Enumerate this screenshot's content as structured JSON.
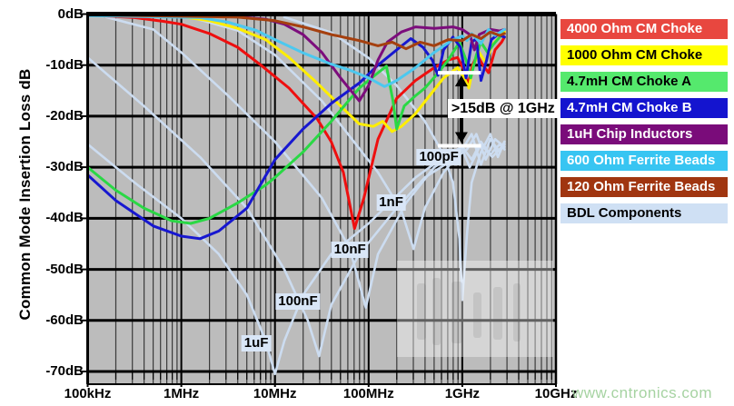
{
  "page": {
    "site_watermark": {
      "text": "www.cntronics.com",
      "color": "#a6d3a2"
    }
  },
  "chart_data": {
    "type": "line",
    "title": "",
    "ylabel": "Common Mode Insertion Loss dB",
    "xlabel": "",
    "x_axis": {
      "scale": "log",
      "min_hz": 100000,
      "max_hz": 10000000000,
      "tick_labels": [
        "100kHz",
        "1MHz",
        "10MHz",
        "100MHz",
        "1GHz",
        "10GHz"
      ]
    },
    "y_axis": {
      "min_db": -70,
      "max_db": 0,
      "step_db": 10,
      "tick_labels": [
        "0dB",
        "-10dB",
        "-20dB",
        "-30dB",
        "-40dB",
        "-50dB",
        "-60dB",
        "-70dB"
      ]
    },
    "grid": "full log grid",
    "legend_position": "right",
    "colors": {
      "plot_bg": "#bcbcbc",
      "grid_minor": "#3a3a3a",
      "grid_major": "#000000",
      "frame": "#000000"
    },
    "series": [
      {
        "name": "4000 Ohm CM Choke",
        "legend_color": "#e8473f",
        "legend_text_color": "#ffffff",
        "line_color": "#ee0f0f",
        "points": [
          [
            5,
            -0.2
          ],
          [
            5.5,
            -0.7
          ],
          [
            5.8,
            -1.4
          ],
          [
            6,
            -2
          ],
          [
            6.3,
            -3.8
          ],
          [
            6.6,
            -6.5
          ],
          [
            6.85,
            -10
          ],
          [
            7.15,
            -14.5
          ],
          [
            7.45,
            -20.5
          ],
          [
            7.6,
            -25
          ],
          [
            7.73,
            -31
          ],
          [
            7.85,
            -42
          ],
          [
            7.95,
            -36
          ],
          [
            8.1,
            -24.5
          ],
          [
            8.3,
            -16.5
          ],
          [
            8.5,
            -13
          ],
          [
            8.7,
            -10.5
          ],
          [
            8.85,
            -9
          ],
          [
            8.95,
            -8.5
          ],
          [
            9.02,
            -11
          ],
          [
            9.06,
            -14
          ],
          [
            9.11,
            -10
          ],
          [
            9.16,
            -8
          ],
          [
            9.22,
            -10
          ],
          [
            9.28,
            -11.5
          ],
          [
            9.35,
            -7
          ],
          [
            9.42,
            -5.5
          ],
          [
            9.45,
            -4.5
          ]
        ]
      },
      {
        "name": "1000 Ohm CM Choke",
        "legend_color": "#ffff00",
        "legend_text_color": "#000000",
        "line_color": "#ffee00",
        "points": [
          [
            5,
            -0.15
          ],
          [
            6,
            -0.5
          ],
          [
            6.3,
            -1.3
          ],
          [
            6.6,
            -2.8
          ],
          [
            6.9,
            -5
          ],
          [
            7.15,
            -8.5
          ],
          [
            7.45,
            -13.5
          ],
          [
            7.7,
            -18
          ],
          [
            7.9,
            -21.5
          ],
          [
            8.05,
            -22
          ],
          [
            8.15,
            -21
          ],
          [
            8.25,
            -23
          ],
          [
            8.35,
            -22
          ],
          [
            8.5,
            -19.5
          ],
          [
            8.65,
            -16
          ],
          [
            8.8,
            -12.5
          ],
          [
            8.95,
            -10.5
          ],
          [
            9.02,
            -12.5
          ],
          [
            9.07,
            -14.5
          ],
          [
            9.12,
            -10
          ],
          [
            9.18,
            -7.5
          ],
          [
            9.25,
            -9.5
          ],
          [
            9.32,
            -6
          ],
          [
            9.4,
            -4.5
          ],
          [
            9.45,
            -3.5
          ]
        ]
      },
      {
        "name": "4.7mH CM Choke A",
        "legend_color": "#55e96d",
        "legend_text_color": "#000000",
        "line_color": "#2ad845",
        "points": [
          [
            5,
            -30
          ],
          [
            5.3,
            -34.5
          ],
          [
            5.6,
            -38
          ],
          [
            5.9,
            -40.5
          ],
          [
            6.1,
            -41
          ],
          [
            6.3,
            -40
          ],
          [
            6.6,
            -37
          ],
          [
            6.9,
            -33.5
          ],
          [
            7,
            -32
          ],
          [
            7.3,
            -27
          ],
          [
            7.6,
            -21
          ],
          [
            7.9,
            -14.5
          ],
          [
            8.1,
            -11.5
          ],
          [
            8.19,
            -10.2
          ],
          [
            8.26,
            -17
          ],
          [
            8.3,
            -22.5
          ],
          [
            8.38,
            -18
          ],
          [
            8.5,
            -16
          ],
          [
            8.6,
            -14.5
          ],
          [
            8.72,
            -12
          ],
          [
            8.85,
            -9
          ],
          [
            8.97,
            -5.5
          ],
          [
            9.04,
            -9
          ],
          [
            9.09,
            -12.5
          ],
          [
            9.15,
            -8
          ],
          [
            9.2,
            -5.5
          ],
          [
            9.27,
            -7.5
          ],
          [
            9.33,
            -6
          ],
          [
            9.4,
            -4.5
          ],
          [
            9.44,
            -3.8
          ]
        ]
      },
      {
        "name": "4.7mH CM Choke B",
        "legend_color": "#1414cf",
        "legend_text_color": "#ffffff",
        "line_color": "#1717d0",
        "points": [
          [
            5,
            -31.5
          ],
          [
            5.3,
            -36.5
          ],
          [
            5.7,
            -41.5
          ],
          [
            6,
            -43.5
          ],
          [
            6.2,
            -44
          ],
          [
            6.4,
            -42.5
          ],
          [
            6.7,
            -38
          ],
          [
            7,
            -28.5
          ],
          [
            7.3,
            -22.5
          ],
          [
            7.6,
            -17.5
          ],
          [
            7.9,
            -13.5
          ],
          [
            8.1,
            -10
          ],
          [
            8.3,
            -7
          ],
          [
            8.45,
            -4.8
          ],
          [
            8.58,
            -6.5
          ],
          [
            8.68,
            -9
          ],
          [
            8.74,
            -12
          ],
          [
            8.8,
            -7
          ],
          [
            8.9,
            -4.5
          ],
          [
            8.98,
            -6.5
          ],
          [
            9.04,
            -12.5
          ],
          [
            9.1,
            -5.5
          ],
          [
            9.15,
            -4.8
          ],
          [
            9.2,
            -13
          ],
          [
            9.26,
            -9
          ],
          [
            9.31,
            -5
          ],
          [
            9.38,
            -4
          ],
          [
            9.45,
            -4.5
          ]
        ]
      },
      {
        "name": "1uH Chip Inductors",
        "legend_color": "#7a0c7a",
        "legend_text_color": "#ffffff",
        "line_color": "#7c0d7c",
        "points": [
          [
            5,
            -0.15
          ],
          [
            6.5,
            -0.4
          ],
          [
            6.9,
            -1
          ],
          [
            7.1,
            -2
          ],
          [
            7.3,
            -4
          ],
          [
            7.5,
            -7.5
          ],
          [
            7.7,
            -12.5
          ],
          [
            7.9,
            -17
          ],
          [
            8,
            -14
          ],
          [
            8.1,
            -9
          ],
          [
            8.2,
            -5.5
          ],
          [
            8.35,
            -3.5
          ],
          [
            8.5,
            -2.5
          ],
          [
            8.7,
            -2.8
          ],
          [
            8.9,
            -2.5
          ],
          [
            9,
            -3
          ],
          [
            9.08,
            -4
          ],
          [
            9.13,
            -7
          ],
          [
            9.18,
            -4
          ],
          [
            9.3,
            -3
          ],
          [
            9.4,
            -3.3
          ],
          [
            9.45,
            -3
          ]
        ]
      },
      {
        "name": "600 Ohm Ferrite Beads",
        "legend_color": "#38c5f2",
        "legend_text_color": "#ffffff",
        "line_color": "#4cc8ef",
        "points": [
          [
            5,
            -0.3
          ],
          [
            6.2,
            -0.7
          ],
          [
            6.5,
            -1.6
          ],
          [
            6.8,
            -3.2
          ],
          [
            7,
            -5
          ],
          [
            7.3,
            -7.6
          ],
          [
            7.6,
            -9.8
          ],
          [
            7.8,
            -11
          ],
          [
            8,
            -12.5
          ],
          [
            8.17,
            -14.2
          ],
          [
            8.3,
            -13
          ],
          [
            8.5,
            -10.5
          ],
          [
            8.7,
            -7.5
          ],
          [
            8.9,
            -5
          ],
          [
            9,
            -4.3
          ],
          [
            9.05,
            -5.2
          ],
          [
            9.1,
            -3.8
          ],
          [
            9.2,
            -5.8
          ],
          [
            9.28,
            -3
          ],
          [
            9.35,
            -4.2
          ],
          [
            9.45,
            -3
          ]
        ]
      },
      {
        "name": "120 Ohm Ferrite Beads",
        "legend_color": "#a03510",
        "legend_text_color": "#ffffff",
        "line_color": "#a5400f",
        "points": [
          [
            5,
            -0.15
          ],
          [
            6.6,
            -0.6
          ],
          [
            7,
            -1.3
          ],
          [
            7.3,
            -2.5
          ],
          [
            7.6,
            -4
          ],
          [
            7.9,
            -5.2
          ],
          [
            8.1,
            -6.2
          ],
          [
            8.25,
            -5.5
          ],
          [
            8.4,
            -6.8
          ],
          [
            8.55,
            -5.5
          ],
          [
            8.7,
            -6.2
          ],
          [
            8.85,
            -5
          ],
          [
            9,
            -5.2
          ],
          [
            9.1,
            -4
          ],
          [
            9.2,
            -4.8
          ],
          [
            9.3,
            -3.5
          ],
          [
            9.4,
            -4.2
          ],
          [
            9.45,
            -3.8
          ]
        ]
      },
      {
        "name": "BDL Components",
        "legend_color": "#cfe0f4",
        "legend_text_color": "#000000",
        "line_color": "#ccdcf0",
        "traces": {
          "1uF": [
            [
              5,
              -25.5
            ],
            [
              5.5,
              -33
            ],
            [
              6,
              -40
            ],
            [
              6.4,
              -47
            ],
            [
              6.7,
              -55
            ],
            [
              6.9,
              -64
            ],
            [
              7,
              -70.5
            ],
            [
              7.1,
              -64
            ],
            [
              7.3,
              -55
            ],
            [
              7.6,
              -47
            ],
            [
              8,
              -41
            ],
            [
              8.5,
              -32
            ],
            [
              8.8,
              -28
            ],
            [
              9,
              -26
            ],
            [
              9.1,
              -28.5
            ],
            [
              9.2,
              -25
            ],
            [
              9.3,
              -27.5
            ],
            [
              9.4,
              -25.5
            ],
            [
              9.45,
              -26.5
            ]
          ],
          "100nF": [
            [
              5,
              -8.5
            ],
            [
              5.6,
              -18
            ],
            [
              6.2,
              -28
            ],
            [
              6.7,
              -38
            ],
            [
              7.1,
              -50
            ],
            [
              7.35,
              -60
            ],
            [
              7.47,
              -67
            ],
            [
              7.6,
              -57
            ],
            [
              7.9,
              -47
            ],
            [
              8.3,
              -38
            ],
            [
              8.6,
              -32
            ],
            [
              8.9,
              -28.5
            ],
            [
              9.05,
              -26.5
            ],
            [
              9.15,
              -23.5
            ],
            [
              9.25,
              -28.5
            ],
            [
              9.35,
              -24.5
            ],
            [
              9.45,
              -26
            ]
          ],
          "10nF": [
            [
              5.2,
              -0.6
            ],
            [
              5.7,
              -3
            ],
            [
              6,
              -7.5
            ],
            [
              6.5,
              -16
            ],
            [
              7,
              -25
            ],
            [
              7.5,
              -36
            ],
            [
              7.8,
              -46
            ],
            [
              7.97,
              -57.5
            ],
            [
              8.1,
              -47
            ],
            [
              8.4,
              -37
            ],
            [
              8.7,
              -30
            ],
            [
              9,
              -26.5
            ],
            [
              9.08,
              -30
            ],
            [
              9.2,
              -25.5
            ],
            [
              9.32,
              -28
            ],
            [
              9.45,
              -25.5
            ]
          ],
          "1nF": [
            [
              6.1,
              -0.6
            ],
            [
              6.6,
              -3.2
            ],
            [
              7,
              -8
            ],
            [
              7.5,
              -17
            ],
            [
              7.8,
              -24
            ],
            [
              8.1,
              -31
            ],
            [
              8.35,
              -38.5
            ],
            [
              8.48,
              -46
            ],
            [
              8.6,
              -38
            ],
            [
              8.8,
              -31
            ],
            [
              9,
              -26.5
            ],
            [
              9.1,
              -23.5
            ],
            [
              9.2,
              -29.5
            ],
            [
              9.3,
              -24.5
            ],
            [
              9.4,
              -27
            ],
            [
              9.45,
              -25
            ]
          ],
          "100pF": [
            [
              7.1,
              -0.6
            ],
            [
              7.6,
              -3.6
            ],
            [
              8,
              -8.6
            ],
            [
              8.3,
              -14
            ],
            [
              8.6,
              -21
            ],
            [
              8.8,
              -27.5
            ],
            [
              8.9,
              -33
            ],
            [
              8.97,
              -44
            ],
            [
              9,
              -56
            ],
            [
              9.05,
              -43
            ],
            [
              9.1,
              -33
            ],
            [
              9.2,
              -27
            ],
            [
              9.3,
              -23.5
            ],
            [
              9.38,
              -28
            ],
            [
              9.45,
              -25
            ]
          ]
        }
      }
    ],
    "annotations": {
      "callout": {
        "text": ">15dB @ 1GHz",
        "arrow_logf": 8.99,
        "top_db": -11.5,
        "bottom_db": -25.8,
        "bar_logf_start": 8.74,
        "bar_logf_end": 9.2,
        "label_logf": 8.845,
        "label_db": -16.6
      },
      "component_labels": [
        {
          "text": "1uF",
          "logf": 6.8,
          "db": -64.5
        },
        {
          "text": "100nF",
          "logf": 7.245,
          "db": -56.3
        },
        {
          "text": "10nF",
          "logf": 7.8,
          "db": -46.2
        },
        {
          "text": "1nF",
          "logf": 8.24,
          "db": -37.0
        },
        {
          "text": "100pF",
          "logf": 8.75,
          "db": -28.0
        }
      ]
    }
  }
}
